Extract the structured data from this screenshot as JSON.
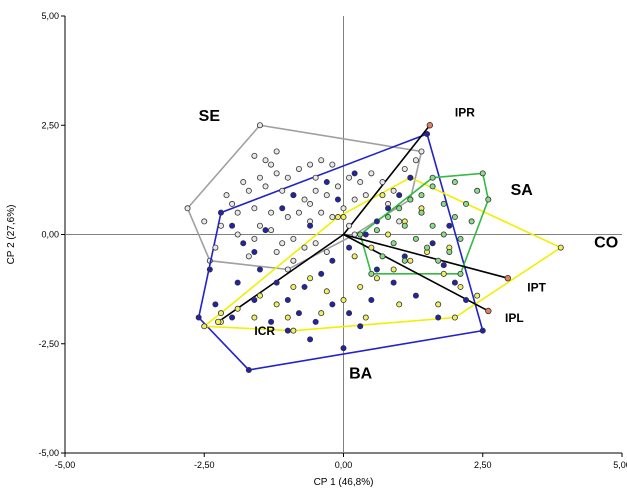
{
  "chart_data": {
    "type": "scatter",
    "title": "",
    "xlabel": "CP 1 (46,8%)",
    "ylabel": "CP 2 (27,6%)",
    "xlim": [
      -5.0,
      5.0
    ],
    "ylim": [
      -5.0,
      5.0
    ],
    "x_ticks": [
      "-5,00",
      "-2,50",
      "0,00",
      "2,50",
      "5,00"
    ],
    "y_ticks": [
      "-5,00",
      "-2,50",
      "0,00",
      "2,50",
      "5,00"
    ],
    "x_tick_values": [
      -5,
      -2.5,
      0,
      2.5,
      5
    ],
    "y_tick_values": [
      -5,
      -2.5,
      0,
      2.5,
      5
    ],
    "grid": false,
    "colors": {
      "SE": "#a0a0a0",
      "BA": "#2222cc",
      "CO": "#f0f000",
      "SA": "#33bb44",
      "vector": "#000000",
      "IPR": "#e08060"
    },
    "groups": [
      {
        "label": "SE",
        "hull_color": "#a0a0a0",
        "point_fill": "#e8e8e8",
        "hull": [
          [
            -1.5,
            2.5
          ],
          [
            1.4,
            1.9
          ],
          [
            1.2,
            0.8
          ],
          [
            0.2,
            0.0
          ],
          [
            -1.0,
            -0.8
          ],
          [
            -2.4,
            -0.6
          ],
          [
            -2.8,
            0.6
          ]
        ],
        "points": [
          [
            -1.6,
            1.8
          ],
          [
            -1.4,
            1.7
          ],
          [
            -1.3,
            1.6
          ],
          [
            -1.2,
            1.4
          ],
          [
            -1.5,
            1.3
          ],
          [
            -1.0,
            1.3
          ],
          [
            -0.8,
            1.5
          ],
          [
            -0.6,
            1.6
          ],
          [
            -0.4,
            1.7
          ],
          [
            -0.2,
            1.6
          ],
          [
            -1.8,
            1.2
          ],
          [
            -1.7,
            1.0
          ],
          [
            -1.4,
            1.1
          ],
          [
            -1.1,
            1.0
          ],
          [
            -0.9,
            0.9
          ],
          [
            -0.7,
            0.8
          ],
          [
            -0.5,
            1.0
          ],
          [
            -0.3,
            0.9
          ],
          [
            -0.1,
            1.1
          ],
          [
            0.1,
            1.3
          ],
          [
            0.3,
            1.2
          ],
          [
            0.5,
            1.4
          ],
          [
            0.7,
            1.2
          ],
          [
            0.9,
            1.0
          ],
          [
            1.1,
            1.5
          ],
          [
            1.3,
            1.7
          ],
          [
            -2.1,
            0.9
          ],
          [
            -2.0,
            0.7
          ],
          [
            -1.9,
            0.5
          ],
          [
            -1.6,
            0.6
          ],
          [
            -1.3,
            0.5
          ],
          [
            -1.0,
            0.4
          ],
          [
            -0.8,
            0.5
          ],
          [
            -0.6,
            0.3
          ],
          [
            -0.4,
            0.5
          ],
          [
            -0.2,
            0.4
          ],
          [
            0.0,
            0.6
          ],
          [
            0.2,
            0.8
          ],
          [
            -2.2,
            0.2
          ],
          [
            -1.9,
            0.0
          ],
          [
            -1.6,
            -0.1
          ],
          [
            -1.3,
            0.1
          ],
          [
            -1.1,
            -0.2
          ],
          [
            -0.9,
            -0.1
          ],
          [
            -0.7,
            -0.3
          ],
          [
            -0.5,
            -0.2
          ],
          [
            -2.3,
            -0.3
          ],
          [
            -1.7,
            -0.5
          ],
          [
            -1.2,
            -0.4
          ],
          [
            -0.9,
            -0.6
          ],
          [
            -1.2,
            1.9
          ],
          [
            -0.5,
            1.3
          ],
          [
            0.4,
            0.9
          ],
          [
            0.8,
            0.7
          ],
          [
            1.0,
            0.3
          ],
          [
            -2.5,
            0.3
          ],
          [
            -0.3,
            -0.4
          ],
          [
            0.1,
            0.2
          ],
          [
            -1.5,
            0.2
          ],
          [
            -0.6,
            0.7
          ]
        ]
      },
      {
        "label": "BA",
        "hull_color": "#2222cc",
        "point_fill": "#2222aa",
        "hull": [
          [
            1.5,
            2.3
          ],
          [
            2.5,
            -2.2
          ],
          [
            -1.7,
            -3.1
          ],
          [
            -2.6,
            -1.9
          ],
          [
            -2.2,
            0.5
          ]
        ],
        "points": [
          [
            -2.0,
            0.2
          ],
          [
            -1.8,
            -0.2
          ],
          [
            -1.5,
            -0.8
          ],
          [
            -1.2,
            -1.1
          ],
          [
            -1.0,
            -1.5
          ],
          [
            -0.8,
            -1.8
          ],
          [
            -0.5,
            -2.0
          ],
          [
            -0.2,
            -1.6
          ],
          [
            0.1,
            -1.8
          ],
          [
            0.3,
            -2.1
          ],
          [
            0.0,
            -2.6
          ],
          [
            -2.3,
            -1.6
          ],
          [
            -2.0,
            -1.9
          ],
          [
            -1.6,
            -1.5
          ],
          [
            -1.3,
            -2.0
          ],
          [
            -1.0,
            -2.2
          ],
          [
            -0.7,
            -1.2
          ],
          [
            -0.4,
            -0.9
          ],
          [
            -0.2,
            -0.6
          ],
          [
            0.1,
            -0.3
          ],
          [
            0.4,
            0.0
          ],
          [
            0.6,
            0.3
          ],
          [
            0.8,
            0.6
          ],
          [
            1.0,
            0.9
          ],
          [
            1.2,
            1.3
          ],
          [
            1.4,
            0.5
          ],
          [
            1.6,
            -0.2
          ],
          [
            1.8,
            -0.7
          ],
          [
            2.0,
            -1.1
          ],
          [
            2.2,
            -1.5
          ],
          [
            1.7,
            -1.9
          ],
          [
            1.3,
            -1.4
          ],
          [
            0.9,
            -1.1
          ],
          [
            0.6,
            -0.8
          ],
          [
            -1.6,
            -0.4
          ],
          [
            -1.4,
            0.1
          ],
          [
            -1.1,
            0.6
          ],
          [
            -0.9,
            0.9
          ],
          [
            -0.6,
            0.2
          ],
          [
            -0.3,
            1.2
          ],
          [
            -0.1,
            0.8
          ],
          [
            0.2,
            1.4
          ],
          [
            -1.9,
            -1.1
          ],
          [
            -2.4,
            -0.8
          ],
          [
            1.1,
            -0.5
          ],
          [
            0.5,
            -1.5
          ],
          [
            -0.6,
            -2.4
          ],
          [
            1.9,
            0.2
          ]
        ]
      },
      {
        "label": "CO",
        "hull_color": "#f0f000",
        "point_fill": "#f0f060",
        "hull": [
          [
            1.2,
            1.3
          ],
          [
            3.9,
            -0.3
          ],
          [
            2.0,
            -1.9
          ],
          [
            -0.9,
            -2.2
          ],
          [
            -2.5,
            -2.1
          ],
          [
            -2.2,
            -1.8
          ],
          [
            -0.1,
            0.4
          ]
        ],
        "points": [
          [
            -2.2,
            -2.0
          ],
          [
            -1.9,
            -1.7
          ],
          [
            -1.5,
            -1.4
          ],
          [
            -1.2,
            -1.6
          ],
          [
            -0.9,
            -1.2
          ],
          [
            -0.6,
            -1.0
          ],
          [
            -0.3,
            -1.3
          ],
          [
            0.0,
            -1.5
          ],
          [
            0.3,
            -1.2
          ],
          [
            0.6,
            -1.0
          ],
          [
            0.9,
            -0.8
          ],
          [
            1.2,
            -0.6
          ],
          [
            1.5,
            -0.4
          ],
          [
            1.8,
            -0.9
          ],
          [
            2.1,
            -1.2
          ],
          [
            2.4,
            -1.4
          ],
          [
            0.2,
            -0.5
          ],
          [
            0.5,
            -0.3
          ],
          [
            0.8,
            0.0
          ],
          [
            1.1,
            0.3
          ],
          [
            1.4,
            0.6
          ],
          [
            1.0,
            -1.6
          ],
          [
            0.4,
            -1.9
          ],
          [
            -0.4,
            -1.8
          ],
          [
            -1.0,
            -1.9
          ],
          [
            1.7,
            -1.6
          ],
          [
            0.0,
            0.4
          ],
          [
            0.7,
            0.9
          ],
          [
            1.9,
            -0.3
          ],
          [
            -1.6,
            -1.9
          ]
        ]
      },
      {
        "label": "SA",
        "hull_color": "#33bb44",
        "point_fill": "#88dd88",
        "hull": [
          [
            2.5,
            1.4
          ],
          [
            2.6,
            0.8
          ],
          [
            2.1,
            -0.9
          ],
          [
            0.5,
            -0.9
          ],
          [
            0.3,
            0.0
          ],
          [
            1.6,
            1.3
          ]
        ],
        "points": [
          [
            0.8,
            0.4
          ],
          [
            1.0,
            0.6
          ],
          [
            1.2,
            0.8
          ],
          [
            1.4,
            0.5
          ],
          [
            1.6,
            0.2
          ],
          [
            1.8,
            0.0
          ],
          [
            2.0,
            0.4
          ],
          [
            2.2,
            0.7
          ],
          [
            2.4,
            1.0
          ],
          [
            2.3,
            0.3
          ],
          [
            2.1,
            -0.1
          ],
          [
            1.9,
            -0.4
          ],
          [
            1.7,
            -0.6
          ],
          [
            1.5,
            -0.3
          ],
          [
            1.3,
            -0.1
          ],
          [
            1.1,
            0.2
          ],
          [
            0.9,
            -0.2
          ],
          [
            0.7,
            -0.5
          ],
          [
            0.6,
            0.1
          ],
          [
            1.6,
            1.1
          ],
          [
            2.0,
            1.2
          ],
          [
            1.8,
            0.7
          ],
          [
            1.4,
            0.9
          ],
          [
            1.1,
            -0.6
          ]
        ]
      }
    ],
    "vectors": [
      {
        "label": "IPR",
        "x": 1.55,
        "y": 2.5
      },
      {
        "label": "IPT",
        "x": 2.95,
        "y": -1.0
      },
      {
        "label": "IPL",
        "x": 2.6,
        "y": -1.75
      },
      {
        "label": "ICR",
        "x": -2.25,
        "y": -2.0
      }
    ],
    "vector_points": [
      {
        "x": 1.55,
        "y": 2.5,
        "fill": "#e08060"
      },
      {
        "x": 2.95,
        "y": -1.0,
        "fill": "#e08060"
      },
      {
        "x": 2.6,
        "y": -1.75,
        "fill": "#e08060"
      },
      {
        "x": -2.25,
        "y": -2.0,
        "fill": "#f0f060"
      }
    ],
    "group_labels": [
      {
        "text": "SE",
        "x": -2.6,
        "y": 2.6
      },
      {
        "text": "SA",
        "x": 3.0,
        "y": 0.9
      },
      {
        "text": "CO",
        "x": 4.5,
        "y": -0.3
      },
      {
        "text": "BA",
        "x": 0.1,
        "y": -3.3
      }
    ],
    "vector_labels": [
      {
        "text": "IPR",
        "x": 2.0,
        "y": 2.7
      },
      {
        "text": "IPT",
        "x": 3.3,
        "y": -1.3
      },
      {
        "text": "IPL",
        "x": 2.9,
        "y": -2.0
      },
      {
        "text": "ICR",
        "x": -1.6,
        "y": -2.3
      }
    ]
  }
}
